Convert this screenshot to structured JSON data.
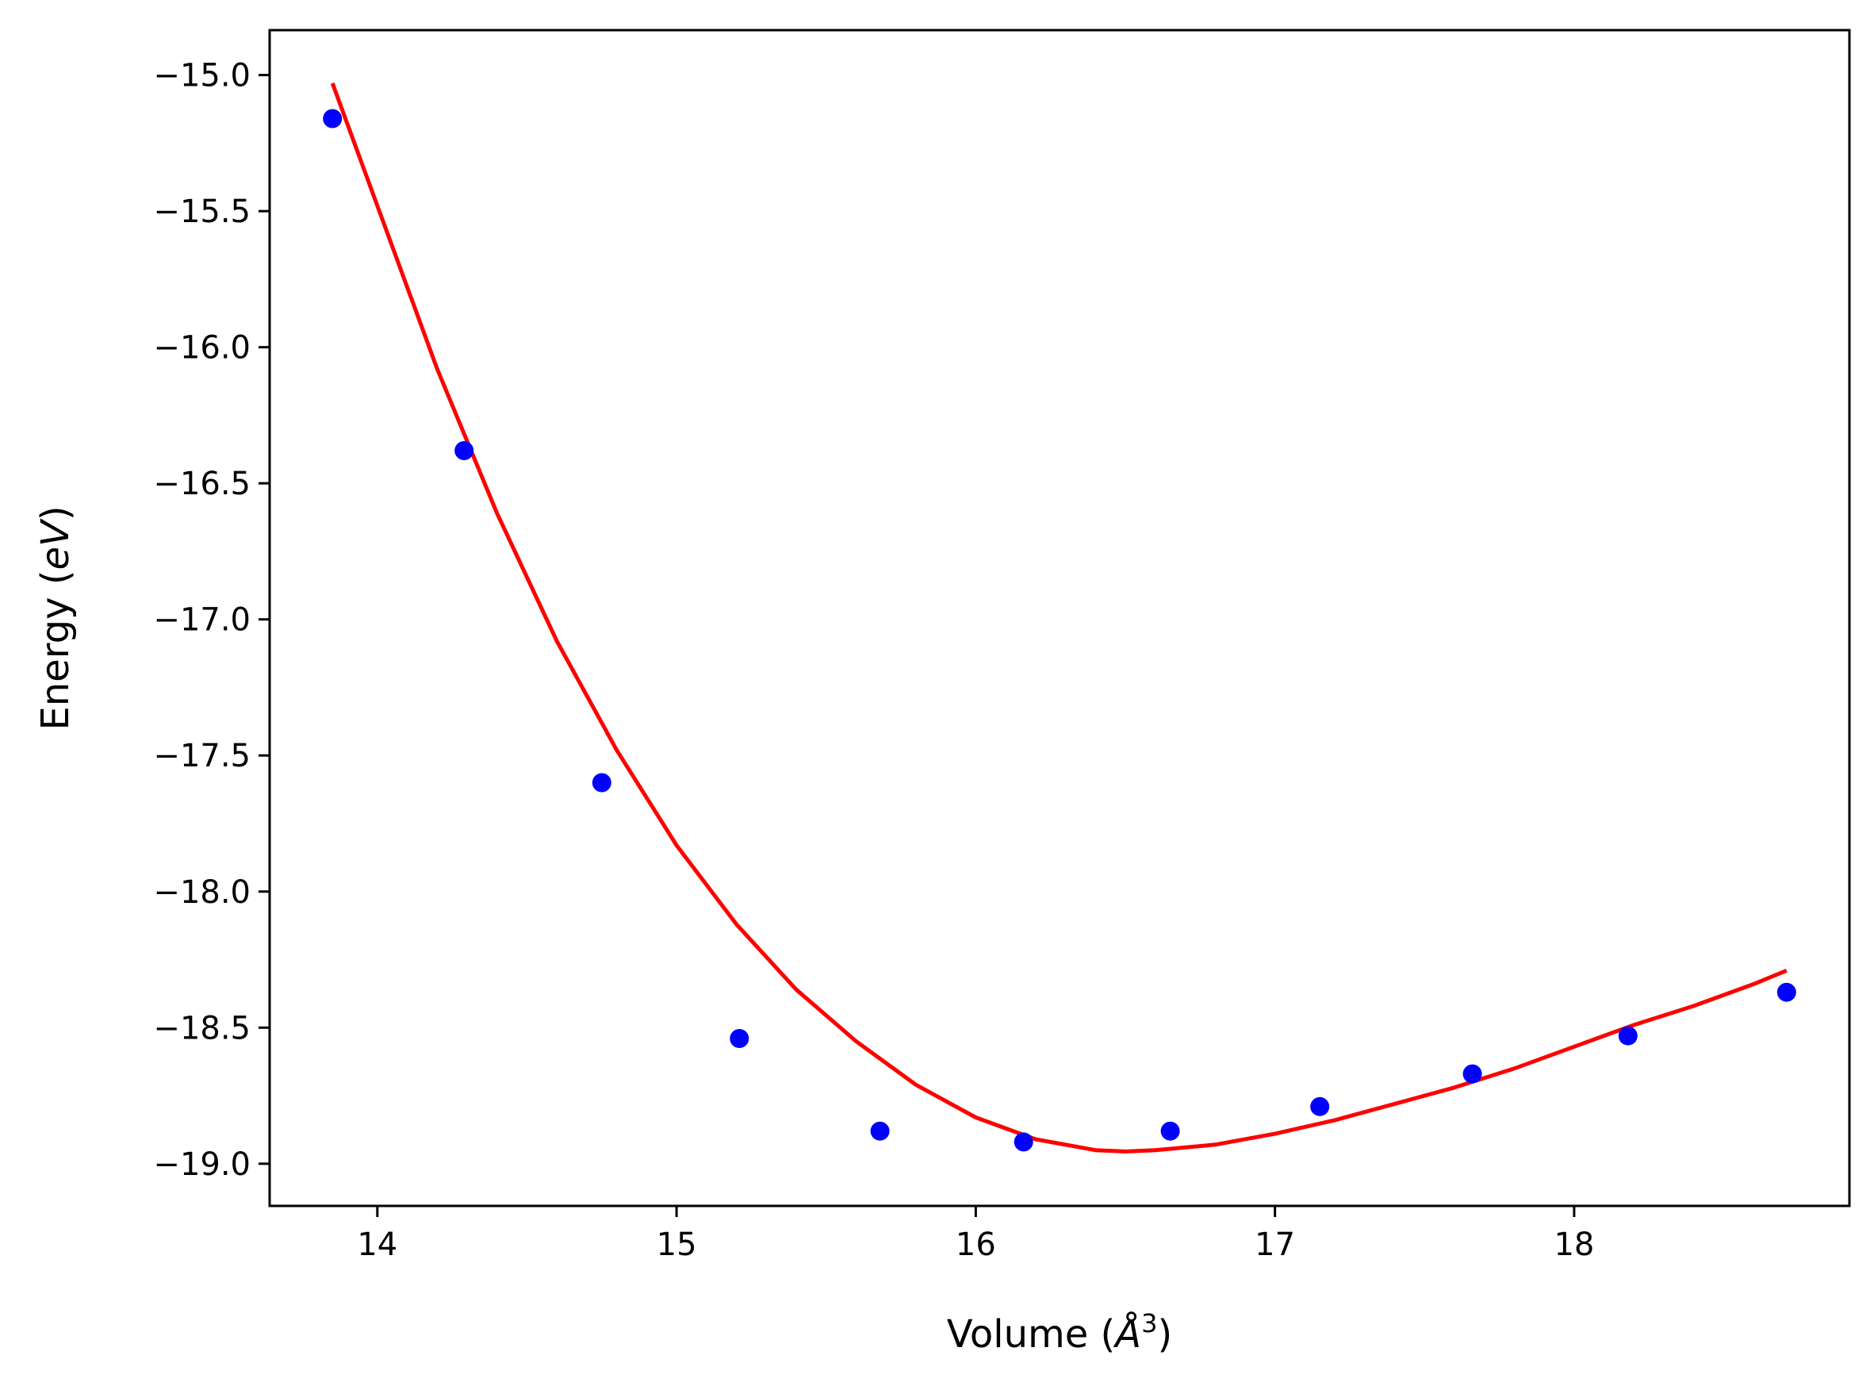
{
  "chart_data": {
    "type": "scatter",
    "title": "",
    "xlabel": "Volume (",
    "xlabel_symbol": "Å",
    "xlabel_exponent": "3",
    "xlabel_close": ")",
    "ylabel": "Energy (",
    "ylabel_symbol": "eV",
    "ylabel_close": ")",
    "xlim": [
      13.64,
      18.92
    ],
    "ylim": [
      -19.155,
      -14.835
    ],
    "xticks": [
      14,
      15,
      16,
      17,
      18
    ],
    "xtick_labels": [
      "14",
      "15",
      "16",
      "17",
      "18"
    ],
    "yticks": [
      -15.0,
      -15.5,
      -16.0,
      -16.5,
      -17.0,
      -17.5,
      -18.0,
      -18.5,
      -19.0
    ],
    "ytick_labels": [
      "−15.0",
      "−15.5",
      "−16.0",
      "−16.5",
      "−17.0",
      "−17.5",
      "−18.0",
      "−18.5",
      "−19.0"
    ],
    "grid": false,
    "legend": "none",
    "series": [
      {
        "kind": "points",
        "color": "#0000ff",
        "x": [
          13.85,
          14.29,
          14.75,
          15.21,
          15.68,
          16.16,
          16.65,
          17.15,
          17.66,
          18.18,
          18.71
        ],
        "y": [
          -15.16,
          -16.38,
          -17.6,
          -18.54,
          -18.88,
          -18.92,
          -18.88,
          -18.79,
          -18.67,
          -18.53,
          -18.37
        ]
      },
      {
        "kind": "fit-curve",
        "color": "#ff0000",
        "x": [
          13.85,
          14.0,
          14.2,
          14.4,
          14.6,
          14.8,
          15.0,
          15.2,
          15.4,
          15.6,
          15.8,
          16.0,
          16.2,
          16.4,
          16.5,
          16.6,
          16.8,
          17.0,
          17.2,
          17.4,
          17.6,
          17.8,
          18.0,
          18.2,
          18.4,
          18.6,
          18.71
        ],
        "y": [
          -15.03,
          -15.48,
          -16.08,
          -16.61,
          -17.08,
          -17.48,
          -17.83,
          -18.12,
          -18.36,
          -18.55,
          -18.71,
          -18.83,
          -18.91,
          -18.95,
          -18.955,
          -18.95,
          -18.93,
          -18.89,
          -18.84,
          -18.78,
          -18.72,
          -18.65,
          -18.57,
          -18.49,
          -18.42,
          -18.34,
          -18.29
        ]
      }
    ]
  }
}
